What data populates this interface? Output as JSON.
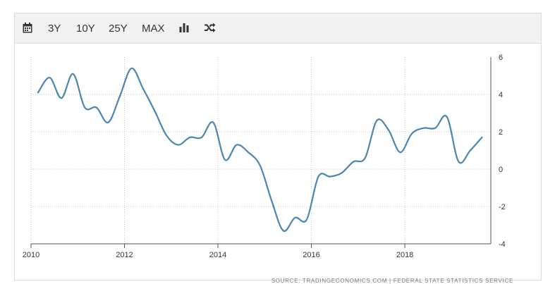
{
  "toolbar": {
    "items": [
      {
        "icon": "calendar-icon"
      },
      {
        "label": "3Y"
      },
      {
        "label": "10Y"
      },
      {
        "label": "25Y"
      },
      {
        "label": "MAX"
      },
      {
        "icon": "bar-chart-icon"
      },
      {
        "icon": "shuffle-icon"
      }
    ]
  },
  "source": "SOURCE: TRADINGECONOMICS.COM  |  FEDERAL STATE STATISTICS SERVICE",
  "colors": {
    "line": "#4a86b0",
    "grid": "#c9c9c9",
    "toolbar": "#f2f2f2"
  },
  "chart_data": {
    "type": "line",
    "title": "",
    "xlabel": "",
    "ylabel": "",
    "xlim": [
      2010,
      2019.84
    ],
    "ylim": [
      -4,
      6
    ],
    "x_ticks": [
      "2010",
      "2012",
      "2014",
      "2016",
      "2018"
    ],
    "y_ticks": [
      "6",
      "4",
      "2",
      "0",
      "-2",
      "-4"
    ],
    "y_axis_side": "right",
    "grid": "dotted",
    "series": [
      {
        "x": [
          2010.15,
          2010.4,
          2010.65,
          2010.9,
          2011.15,
          2011.4,
          2011.65,
          2011.9,
          2012.15,
          2012.4,
          2012.65,
          2012.9,
          2013.15,
          2013.4,
          2013.65,
          2013.9,
          2014.15,
          2014.4,
          2014.65,
          2014.9,
          2015.15,
          2015.4,
          2015.65,
          2015.9,
          2016.15,
          2016.4,
          2016.65,
          2016.9,
          2017.15,
          2017.4,
          2017.65,
          2017.9,
          2018.15,
          2018.4,
          2018.65,
          2018.9,
          2019.15,
          2019.4,
          2019.65
        ],
        "y": [
          4.1,
          4.9,
          3.8,
          5.1,
          3.3,
          3.3,
          2.5,
          3.9,
          5.4,
          4.3,
          3.1,
          1.8,
          1.3,
          1.7,
          1.7,
          2.5,
          0.5,
          1.3,
          0.9,
          0.2,
          -1.7,
          -3.3,
          -2.6,
          -2.7,
          -0.4,
          -0.4,
          -0.2,
          0.4,
          0.6,
          2.6,
          2.1,
          0.9,
          1.9,
          2.2,
          2.2,
          2.8,
          0.4,
          1.0,
          1.7
        ]
      }
    ]
  }
}
